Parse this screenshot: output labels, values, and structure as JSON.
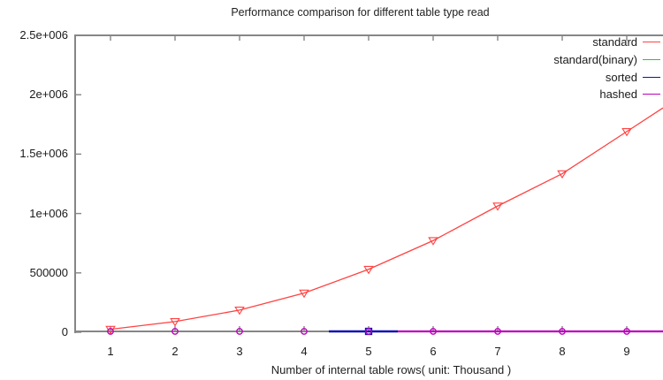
{
  "title": "Performance comparison for different table type read",
  "axes": {
    "xlabel": "Number of internal table rows( unit: Thousand )",
    "x_tick_labels": [
      "1",
      "2",
      "3",
      "4",
      "5",
      "6",
      "7",
      "8",
      "9"
    ],
    "y_tick_labels": [
      "0",
      "500000",
      "1e+006",
      "1.5e+006",
      "2e+006",
      "2.5e+006"
    ]
  },
  "legend": {
    "position": "top-right-inside",
    "items": [
      {
        "label": "standard",
        "color": "#ff4242"
      },
      {
        "label": "standard(binary)",
        "color": "#22cc22"
      },
      {
        "label": "sorted",
        "color": "#1111b5"
      },
      {
        "label": "hashed",
        "color": "#bb00bb"
      }
    ]
  },
  "colors": {
    "border": "#868686",
    "text": "#1a1a1a",
    "background": "#ffffff"
  },
  "chart_data": {
    "type": "line",
    "title": "Performance comparison for different table type read",
    "xlabel": "Number of internal table rows( unit: Thousand )",
    "ylabel": "",
    "x": [
      1,
      2,
      3,
      4,
      5,
      6,
      7,
      8,
      9
    ],
    "series": [
      {
        "name": "standard",
        "color": "#ff4242",
        "marker": "triangle-down-open",
        "values": [
          25000,
          90000,
          187000,
          330000,
          530000,
          772000,
          1063000,
          1335000,
          1690000
        ]
      },
      {
        "name": "standard(binary)",
        "color": "#22cc22",
        "marker": "none",
        "values": [
          0,
          0,
          0,
          0,
          0,
          0,
          0,
          0,
          0
        ]
      },
      {
        "name": "sorted",
        "color": "#1111b5",
        "marker": "square-open",
        "values": [
          0,
          0,
          0,
          2000,
          8000,
          2000,
          0,
          0,
          0
        ]
      },
      {
        "name": "hashed",
        "color": "#bb00bb",
        "marker": "circle-open",
        "values": [
          0,
          0,
          0,
          0,
          0,
          0,
          0,
          0,
          0
        ]
      }
    ],
    "xlim": [
      0.45,
      9.56
    ],
    "ylim": [
      0,
      2500000
    ],
    "grid": false,
    "legend_position": "top-right",
    "notes": "standard series grows quadratically and is clipped at right edge near 1.93e+006; binary/sorted/hashed lie flat at ~0 on the x-axis"
  }
}
